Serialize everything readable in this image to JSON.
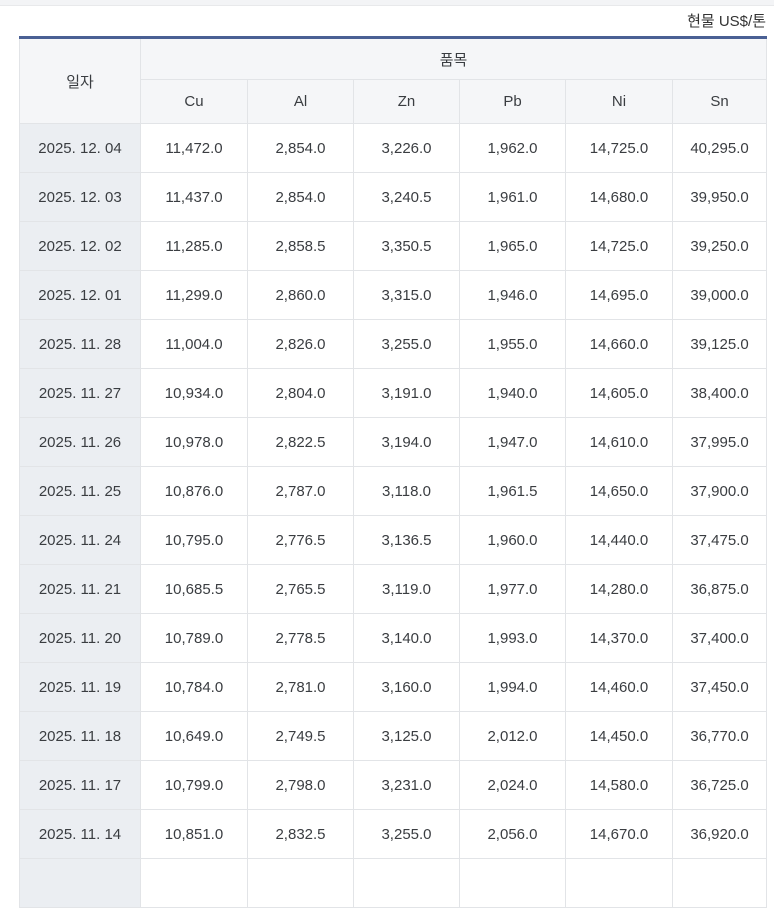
{
  "page": {
    "unit_label": "현물 US$/톤"
  },
  "table": {
    "headers": {
      "date": "일자",
      "group": "품목",
      "columns": [
        "Cu",
        "Al",
        "Zn",
        "Pb",
        "Ni",
        "Sn"
      ]
    },
    "rows": [
      {
        "date": "2025. 12. 04",
        "values": [
          "11,472.0",
          "2,854.0",
          "3,226.0",
          "1,962.0",
          "14,725.0",
          "40,295.0"
        ]
      },
      {
        "date": "2025. 12. 03",
        "values": [
          "11,437.0",
          "2,854.0",
          "3,240.5",
          "1,961.0",
          "14,680.0",
          "39,950.0"
        ]
      },
      {
        "date": "2025. 12. 02",
        "values": [
          "11,285.0",
          "2,858.5",
          "3,350.5",
          "1,965.0",
          "14,725.0",
          "39,250.0"
        ]
      },
      {
        "date": "2025. 12. 01",
        "values": [
          "11,299.0",
          "2,860.0",
          "3,315.0",
          "1,946.0",
          "14,695.0",
          "39,000.0"
        ]
      },
      {
        "date": "2025. 11. 28",
        "values": [
          "11,004.0",
          "2,826.0",
          "3,255.0",
          "1,955.0",
          "14,660.0",
          "39,125.0"
        ]
      },
      {
        "date": "2025. 11. 27",
        "values": [
          "10,934.0",
          "2,804.0",
          "3,191.0",
          "1,940.0",
          "14,605.0",
          "38,400.0"
        ]
      },
      {
        "date": "2025. 11. 26",
        "values": [
          "10,978.0",
          "2,822.5",
          "3,194.0",
          "1,947.0",
          "14,610.0",
          "37,995.0"
        ]
      },
      {
        "date": "2025. 11. 25",
        "values": [
          "10,876.0",
          "2,787.0",
          "3,118.0",
          "1,961.5",
          "14,650.0",
          "37,900.0"
        ]
      },
      {
        "date": "2025. 11. 24",
        "values": [
          "10,795.0",
          "2,776.5",
          "3,136.5",
          "1,960.0",
          "14,440.0",
          "37,475.0"
        ]
      },
      {
        "date": "2025. 11. 21",
        "values": [
          "10,685.5",
          "2,765.5",
          "3,119.0",
          "1,977.0",
          "14,280.0",
          "36,875.0"
        ]
      },
      {
        "date": "2025. 11. 20",
        "values": [
          "10,789.0",
          "2,778.5",
          "3,140.0",
          "1,993.0",
          "14,370.0",
          "37,400.0"
        ]
      },
      {
        "date": "2025. 11. 19",
        "values": [
          "10,784.0",
          "2,781.0",
          "3,160.0",
          "1,994.0",
          "14,460.0",
          "37,450.0"
        ]
      },
      {
        "date": "2025. 11. 18",
        "values": [
          "10,649.0",
          "2,749.5",
          "3,125.0",
          "2,012.0",
          "14,450.0",
          "36,770.0"
        ]
      },
      {
        "date": "2025. 11. 17",
        "values": [
          "10,799.0",
          "2,798.0",
          "3,231.0",
          "2,024.0",
          "14,580.0",
          "36,725.0"
        ]
      },
      {
        "date": "2025. 11. 14",
        "values": [
          "10,851.0",
          "2,832.5",
          "3,255.0",
          "2,056.0",
          "14,670.0",
          "36,920.0"
        ]
      }
    ]
  },
  "colors": {
    "accent": "#4a6094",
    "header_bg": "#f5f6f8",
    "date_column_bg": "#ebeef2",
    "grid_line": "#e2e4e7",
    "text": "#333333",
    "top_strip": "#f3f4f6"
  }
}
